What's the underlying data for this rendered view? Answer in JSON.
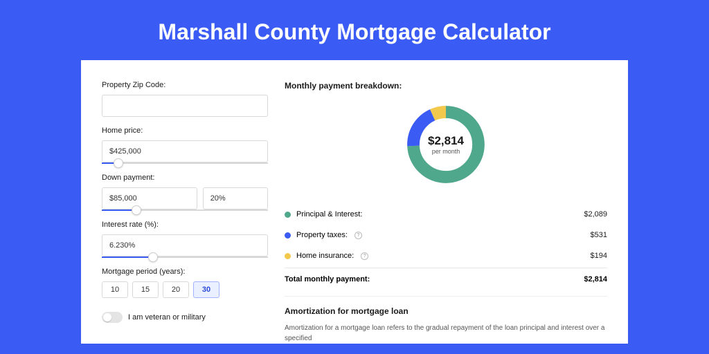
{
  "page": {
    "title": "Marshall County Mortgage Calculator",
    "background_color": "#3b5bf5",
    "card_background": "#ffffff"
  },
  "form": {
    "zip": {
      "label": "Property Zip Code:",
      "value": ""
    },
    "home_price": {
      "label": "Home price:",
      "value": "$425,000",
      "slider_pct": 10
    },
    "down_payment": {
      "label": "Down payment:",
      "value": "$85,000",
      "pct_value": "20%",
      "slider_pct": 21
    },
    "interest_rate": {
      "label": "Interest rate (%):",
      "value": "6.230%",
      "slider_pct": 31
    },
    "mortgage_period": {
      "label": "Mortgage period (years):",
      "options": [
        "10",
        "15",
        "20",
        "30"
      ],
      "selected": "30"
    },
    "veteran": {
      "label": "I am veteran or military",
      "enabled": false
    }
  },
  "breakdown": {
    "title": "Monthly payment breakdown:",
    "total_amount": "$2,814",
    "total_sub": "per month",
    "items": [
      {
        "label": "Principal & Interest:",
        "value": "$2,089",
        "color": "#4fa88c",
        "has_info": false,
        "pct": 74.2
      },
      {
        "label": "Property taxes:",
        "value": "$531",
        "color": "#3b5bf5",
        "has_info": true,
        "pct": 18.9
      },
      {
        "label": "Home insurance:",
        "value": "$194",
        "color": "#f2c94c",
        "has_info": true,
        "pct": 6.9
      }
    ],
    "total_row": {
      "label": "Total monthly payment:",
      "value": "$2,814"
    }
  },
  "amortization": {
    "title": "Amortization for mortgage loan",
    "text": "Amortization for a mortgage loan refers to the gradual repayment of the loan principal and interest over a specified"
  },
  "style": {
    "input_border": "#d8d8d8",
    "slider_fill": "#3b5bf5",
    "text_muted": "#555555"
  }
}
